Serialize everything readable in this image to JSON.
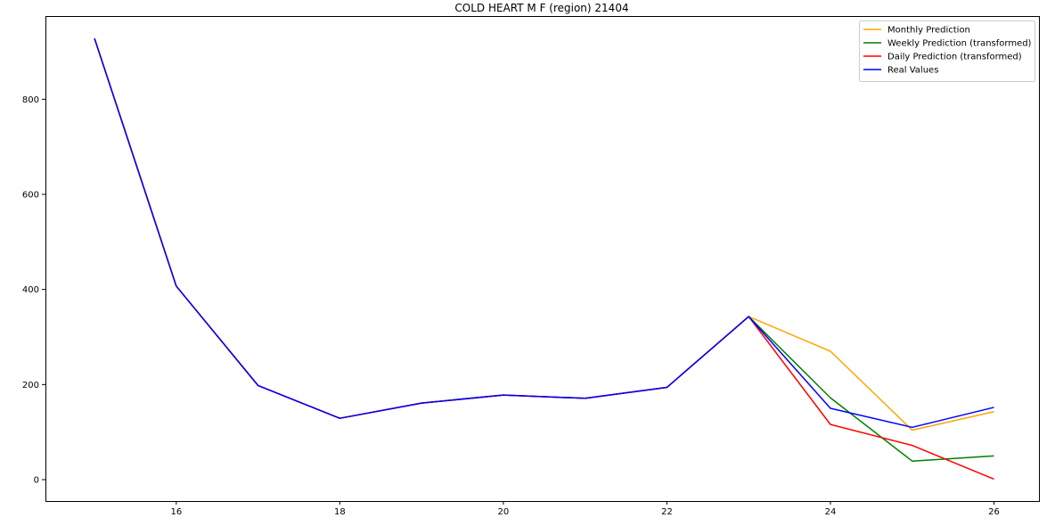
{
  "chart_data": {
    "type": "line",
    "title": "COLD HEART M  F (region) 21404",
    "xlabel": "",
    "ylabel": "",
    "xlim": [
      14.4,
      26.55
    ],
    "ylim": [
      -45,
      975
    ],
    "xticks": [
      16,
      18,
      20,
      22,
      24,
      26
    ],
    "yticks": [
      0,
      200,
      400,
      600,
      800
    ],
    "grid": false,
    "legend_position": "top-right",
    "x": [
      15,
      16,
      17,
      18,
      19,
      20,
      21,
      22,
      23,
      24,
      25,
      26
    ],
    "series": [
      {
        "name": "Monthly Prediction",
        "color": "#ffa500",
        "values": [
          928,
          407,
          198,
          129,
          161,
          178,
          171,
          194,
          343,
          270,
          104,
          143
        ]
      },
      {
        "name": "Weekly Prediction (transformed)",
        "color": "#008000",
        "values": [
          928,
          407,
          198,
          129,
          161,
          178,
          171,
          194,
          343,
          172,
          39,
          50
        ]
      },
      {
        "name": "Daily Prediction (transformed)",
        "color": "#ff0000",
        "values": [
          928,
          407,
          198,
          129,
          161,
          178,
          171,
          194,
          343,
          116,
          72,
          1
        ]
      },
      {
        "name": "Real Values",
        "color": "#0000ff",
        "values": [
          928,
          407,
          198,
          129,
          161,
          178,
          171,
          194,
          343,
          150,
          110,
          152
        ]
      }
    ]
  }
}
